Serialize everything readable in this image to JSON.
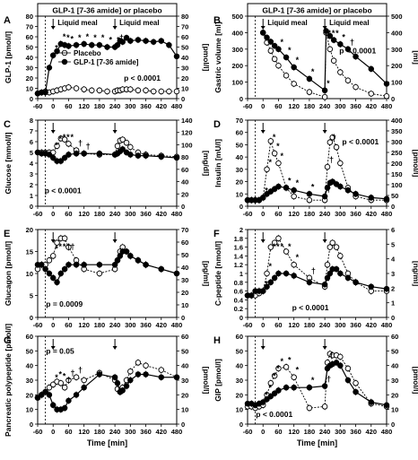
{
  "figure": {
    "shared_x_label": "Time [min]",
    "x_ticks": [
      -60,
      0,
      60,
      120,
      180,
      240,
      300,
      360,
      420,
      480
    ]
  },
  "chart_data": [
    {
      "panel": "A",
      "type": "line",
      "header": "GLP-1 [7-36 amide] or placebo",
      "meal_label": "Liquid meal",
      "ylabel": "GLP-1 [pmol/l]",
      "ylabel_right": "[pmol/l]",
      "ylim": [
        0,
        80
      ],
      "yticks": [
        0,
        10,
        20,
        30,
        40,
        50,
        60,
        70,
        80
      ],
      "yticks_right": [
        0,
        10,
        20,
        30,
        40,
        50,
        60,
        70,
        80
      ],
      "p_value": "p < 0.0001",
      "legend": [
        "Placebo",
        "GLP-1 [7-36 amide]"
      ],
      "x": [
        -60,
        -45,
        -30,
        -15,
        0,
        15,
        30,
        45,
        60,
        90,
        120,
        150,
        180,
        210,
        240,
        250,
        260,
        270,
        285,
        300,
        330,
        360,
        390,
        420,
        450,
        480
      ],
      "series": [
        {
          "name": "Placebo",
          "marker": "open",
          "values": [
            5,
            6,
            7,
            6,
            7,
            8,
            9,
            10,
            11,
            10,
            9,
            8,
            8,
            7,
            7,
            8,
            8,
            9,
            9,
            9,
            8,
            8,
            7,
            7,
            7,
            7
          ]
        },
        {
          "name": "GLP-1 [7-36 amide]",
          "marker": "filled",
          "values": [
            5,
            6,
            6,
            30,
            42,
            46,
            53,
            52,
            51,
            52,
            53,
            52,
            52,
            50,
            50,
            52,
            56,
            55,
            59,
            56,
            57,
            56,
            55,
            56,
            52,
            41
          ]
        }
      ],
      "annotations": [
        "*",
        "*",
        "*",
        "*",
        "*",
        "*",
        "*",
        "*",
        "*",
        "*",
        "*",
        "†"
      ]
    },
    {
      "panel": "B",
      "type": "line",
      "header": "GLP-1 [7-36 amide] or placebo",
      "meal_label": "Liquid meal",
      "ylabel": "Gastric volume [ml]",
      "ylabel_right": "[ml]",
      "ylim": [
        0,
        500
      ],
      "yticks": [
        0,
        100,
        200,
        300,
        400,
        500
      ],
      "yticks_right": [
        0,
        100,
        200,
        300,
        400,
        500
      ],
      "p_value": "p < 0.0001",
      "x": [
        0,
        15,
        30,
        45,
        60,
        90,
        120,
        180,
        240,
        245,
        260,
        275,
        300,
        330,
        360,
        420,
        480
      ],
      "series": [
        {
          "name": "Placebo",
          "marker": "open",
          "values": [
            400,
            340,
            290,
            240,
            200,
            140,
            90,
            40,
            10,
            400,
            300,
            230,
            160,
            110,
            70,
            30,
            15
          ]
        },
        {
          "name": "GLP-1 [7-36 amide]",
          "marker": "filled",
          "values": [
            400,
            370,
            345,
            320,
            300,
            250,
            190,
            120,
            50,
            410,
            380,
            355,
            330,
            300,
            255,
            180,
            90
          ]
        }
      ],
      "annotations": [
        "*",
        "*",
        "*",
        "*",
        "*",
        "*",
        "*",
        "*",
        "*",
        "†"
      ]
    },
    {
      "panel": "C",
      "type": "line",
      "ylabel": "Glucose [mmol/l]",
      "ylabel_right": "[mg/dl]",
      "ylim": [
        0,
        8
      ],
      "yticks": [
        0,
        1,
        2,
        3,
        4,
        5,
        6,
        7,
        8
      ],
      "yticks_right": [
        0,
        20,
        40,
        60,
        80,
        100,
        120,
        140
      ],
      "p_value": "p < 0.0001",
      "x": [
        -60,
        -45,
        -30,
        -15,
        0,
        15,
        30,
        45,
        60,
        90,
        120,
        180,
        240,
        250,
        260,
        270,
        285,
        300,
        330,
        360,
        420,
        480
      ],
      "series": [
        {
          "name": "Placebo",
          "marker": "open",
          "values": [
            5.0,
            5.0,
            5.0,
            5.0,
            5.0,
            5.6,
            6.3,
            6.2,
            5.8,
            5.2,
            4.9,
            4.8,
            4.8,
            5.6,
            6.1,
            6.2,
            5.9,
            5.5,
            5.0,
            4.8,
            4.7,
            4.6
          ]
        },
        {
          "name": "GLP-1 [7-36 amide]",
          "marker": "filled",
          "values": [
            5.0,
            4.9,
            4.9,
            4.8,
            4.5,
            4.2,
            4.2,
            4.5,
            4.8,
            4.9,
            4.9,
            4.9,
            4.8,
            4.9,
            5.1,
            5.3,
            5.0,
            4.8,
            4.7,
            4.7,
            4.6,
            4.5
          ]
        }
      ],
      "annotations": [
        "*",
        "*",
        "*",
        "*",
        "*",
        "†",
        "†"
      ]
    },
    {
      "panel": "D",
      "type": "line",
      "ylabel": "Insulin [mU/l]",
      "ylabel_right": "[pmol/l]",
      "ylim": [
        0,
        70
      ],
      "yticks": [
        0,
        10,
        20,
        30,
        40,
        50,
        60,
        70
      ],
      "yticks_right": [
        0,
        50,
        100,
        150,
        200,
        250,
        300,
        350,
        400
      ],
      "p_value": "p < 0.0001",
      "x": [
        -60,
        -45,
        -30,
        -15,
        0,
        15,
        30,
        45,
        60,
        90,
        120,
        180,
        240,
        250,
        260,
        270,
        285,
        300,
        330,
        360,
        420,
        480
      ],
      "series": [
        {
          "name": "Placebo",
          "marker": "open",
          "values": [
            5,
            5,
            5,
            5,
            7,
            30,
            53,
            43,
            35,
            15,
            8,
            5,
            5,
            32,
            52,
            56,
            48,
            35,
            15,
            8,
            5,
            5
          ]
        },
        {
          "name": "GLP-1 [7-36 amide]",
          "marker": "filled",
          "values": [
            5,
            5,
            5,
            5,
            7,
            10,
            12,
            14,
            16,
            15,
            13,
            10,
            8,
            15,
            19,
            20,
            18,
            16,
            13,
            10,
            7,
            6
          ]
        }
      ],
      "annotations": [
        "*",
        "*",
        "*",
        "*",
        "*",
        "*",
        "*",
        "*",
        "†",
        "†",
        "†"
      ]
    },
    {
      "panel": "E",
      "type": "line",
      "ylabel": "Glucagon [pmol/l]",
      "ylabel_right": "[pg/ml]",
      "ylim": [
        0,
        20
      ],
      "yticks": [
        0,
        5,
        10,
        15,
        20
      ],
      "yticks_right": [
        0,
        10,
        20,
        30,
        40,
        50,
        60,
        70
      ],
      "p_value": "p = 0.0009",
      "x": [
        -60,
        -45,
        -30,
        -15,
        0,
        15,
        30,
        45,
        60,
        90,
        120,
        180,
        240,
        250,
        260,
        270,
        285,
        300,
        330,
        360,
        420,
        480
      ],
      "series": [
        {
          "name": "Placebo",
          "marker": "open",
          "values": [
            11,
            12,
            12,
            13,
            14,
            17,
            18,
            18,
            16,
            13,
            11,
            10,
            11,
            13,
            15,
            16,
            15,
            14,
            13,
            12,
            11,
            10
          ]
        },
        {
          "name": "GLP-1 [7-36 amide]",
          "marker": "filled",
          "values": [
            12,
            12,
            11,
            10,
            9,
            8,
            10,
            11,
            12,
            12,
            12,
            12,
            12,
            13,
            14,
            15,
            15,
            14,
            13,
            12,
            11,
            10
          ]
        }
      ],
      "annotations": [
        "*",
        "*",
        "*",
        "†",
        "†"
      ]
    },
    {
      "panel": "F",
      "type": "line",
      "ylabel": "C-peptide [nmol/l]",
      "ylabel_right": "[ng/ml]",
      "ylim": [
        0,
        2.0
      ],
      "yticks": [
        0,
        0.2,
        0.4,
        0.6,
        0.8,
        1.0,
        1.2,
        1.4,
        1.6,
        1.8,
        2.0
      ],
      "yticks_right": [
        0,
        1,
        2,
        3,
        4,
        5,
        6
      ],
      "p_value": "p < 0.0001",
      "x": [
        -60,
        -45,
        -30,
        -15,
        0,
        15,
        30,
        45,
        60,
        90,
        120,
        180,
        240,
        250,
        260,
        270,
        285,
        300,
        330,
        360,
        420,
        480
      ],
      "series": [
        {
          "name": "Placebo",
          "marker": "open",
          "values": [
            0.5,
            0.5,
            0.5,
            0.55,
            0.6,
            1.0,
            1.6,
            1.7,
            1.8,
            1.5,
            1.2,
            0.9,
            0.7,
            1.2,
            1.6,
            1.7,
            1.6,
            1.4,
            1.0,
            0.8,
            0.6,
            0.6
          ]
        },
        {
          "name": "GLP-1 [7-36 amide]",
          "marker": "filled",
          "values": [
            0.5,
            0.5,
            0.6,
            0.6,
            0.6,
            0.7,
            0.8,
            0.9,
            1.0,
            1.0,
            0.95,
            0.8,
            0.75,
            0.9,
            1.0,
            1.1,
            1.1,
            1.0,
            0.9,
            0.8,
            0.7,
            0.65
          ]
        }
      ],
      "annotations": [
        "*",
        "*",
        "*",
        "*",
        "*",
        "*",
        "*",
        "†",
        "†"
      ]
    },
    {
      "panel": "G",
      "type": "line",
      "ylabel": "Pancreatic polypeptide [pmol/l]",
      "ylabel_right": "[pmol/l]",
      "ylim": [
        0,
        60
      ],
      "yticks": [
        0,
        10,
        20,
        30,
        40,
        50,
        60
      ],
      "yticks_right": [
        0,
        10,
        20,
        30,
        40,
        50,
        60
      ],
      "p_value": "p = 0.05",
      "x": [
        -60,
        -45,
        -30,
        -15,
        0,
        15,
        30,
        45,
        60,
        90,
        120,
        180,
        240,
        250,
        260,
        270,
        285,
        300,
        330,
        360,
        420,
        480
      ],
      "series": [
        {
          "name": "Placebo",
          "marker": "open",
          "values": [
            18,
            20,
            22,
            25,
            27,
            29,
            28,
            25,
            30,
            32,
            30,
            35,
            30,
            24,
            22,
            25,
            30,
            36,
            42,
            40,
            37,
            32
          ]
        },
        {
          "name": "GLP-1 [7-36 amide]",
          "marker": "filled",
          "values": [
            18,
            20,
            22,
            20,
            13,
            10,
            10,
            11,
            16,
            20,
            25,
            34,
            32,
            28,
            22,
            23,
            26,
            30,
            34,
            34,
            32,
            32
          ]
        }
      ],
      "annotations": [
        "*",
        "*",
        "*",
        "†",
        "†",
        "†"
      ]
    },
    {
      "panel": "H",
      "type": "line",
      "ylabel": "GIP [pmol/l]",
      "ylabel_right": "[pmol/l]",
      "ylim": [
        0,
        60
      ],
      "yticks": [
        0,
        10,
        20,
        30,
        40,
        50,
        60
      ],
      "yticks_right": [
        0,
        10,
        20,
        30,
        40,
        50,
        60
      ],
      "p_value": "p < 0.0001",
      "x": [
        -60,
        -45,
        -30,
        -15,
        0,
        15,
        30,
        45,
        60,
        90,
        120,
        180,
        240,
        250,
        260,
        270,
        285,
        300,
        330,
        360,
        420,
        480
      ],
      "series": [
        {
          "name": "Placebo",
          "marker": "open",
          "values": [
            12,
            12,
            11,
            12,
            13,
            20,
            28,
            33,
            38,
            39,
            32,
            11,
            12,
            42,
            48,
            47,
            47,
            46,
            38,
            28,
            14,
            12
          ]
        },
        {
          "name": "GLP-1 [7-36 amide]",
          "marker": "filled",
          "values": [
            14,
            14,
            13,
            14,
            15,
            17,
            19,
            21,
            23,
            25,
            25,
            25,
            26,
            38,
            40,
            41,
            42,
            40,
            30,
            22,
            15,
            13
          ]
        }
      ],
      "annotations": [
        "*",
        "*",
        "*",
        "*",
        "*",
        "*",
        "*",
        "*",
        "†",
        "†"
      ]
    }
  ]
}
